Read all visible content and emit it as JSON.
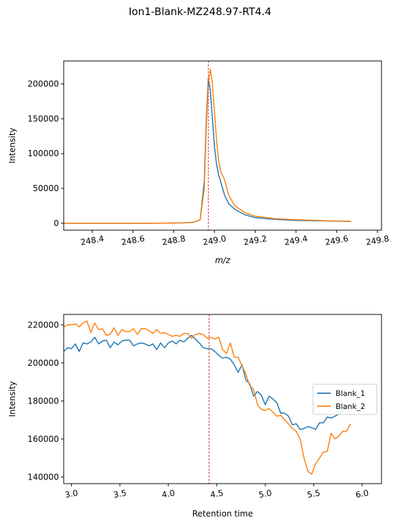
{
  "suptitle": "Ion1-Blank-MZ248.97-RT4.4",
  "chart_data": [
    {
      "type": "line",
      "xlabel": "m/z",
      "ylabel": "Intensity",
      "xlim": [
        248.26,
        249.82
      ],
      "ylim": [
        -10000,
        233000
      ],
      "xticks": [
        248.4,
        248.6,
        248.8,
        249.0,
        249.2,
        249.4,
        249.6,
        249.8
      ],
      "xtick_labels": [
        "248.4",
        "248.6",
        "248.8",
        "249.0",
        "249.2",
        "249.4",
        "249.6",
        "249.8"
      ],
      "yticks": [
        0,
        50000,
        100000,
        150000,
        200000
      ],
      "ytick_labels": [
        "0",
        "50000",
        "100000",
        "150000",
        "200000"
      ],
      "vline": 248.97,
      "series": [
        {
          "color": "#1f77b4",
          "x": [
            248.26,
            248.5,
            248.7,
            248.85,
            248.9,
            248.93,
            248.95,
            248.96,
            248.97,
            248.98,
            248.99,
            249.0,
            249.01,
            249.02,
            249.03,
            249.05,
            249.07,
            249.1,
            249.15,
            249.2,
            249.3,
            249.4,
            249.5,
            249.6,
            249.67
          ],
          "y": [
            0,
            0,
            0,
            500,
            1500,
            5000,
            60000,
            150000,
            208000,
            190000,
            150000,
            110000,
            85000,
            70000,
            60000,
            40000,
            28000,
            20000,
            12000,
            8000,
            5500,
            4000,
            3500,
            3000,
            2500
          ]
        },
        {
          "color": "#ff7f0e",
          "x": [
            248.26,
            248.5,
            248.7,
            248.85,
            248.9,
            248.93,
            248.95,
            248.96,
            248.97,
            248.98,
            248.99,
            249.0,
            249.01,
            249.02,
            249.03,
            249.05,
            249.07,
            249.1,
            249.15,
            249.2,
            249.3,
            249.4,
            249.5,
            249.6,
            249.67
          ],
          "y": [
            0,
            0,
            0,
            500,
            1500,
            5000,
            50000,
            140000,
            202000,
            221000,
            200000,
            160000,
            120000,
            90000,
            75000,
            62000,
            40000,
            25000,
            15000,
            10000,
            6500,
            5000,
            4000,
            3200,
            2800
          ]
        }
      ]
    },
    {
      "type": "line",
      "xlabel": "Retention time",
      "ylabel": "Intensity",
      "xlim": [
        2.92,
        6.2
      ],
      "ylim": [
        136500,
        225500
      ],
      "xticks": [
        3.0,
        3.5,
        4.0,
        4.5,
        5.0,
        5.5,
        6.0
      ],
      "xtick_labels": [
        "3.0",
        "3.5",
        "4.0",
        "4.5",
        "5.0",
        "5.5",
        "6.0"
      ],
      "yticks": [
        140000,
        160000,
        180000,
        200000,
        220000
      ],
      "ytick_labels": [
        "140000",
        "160000",
        "180000",
        "200000",
        "220000"
      ],
      "vline": 4.42,
      "legend_position": "center-right",
      "series": [
        {
          "name": "Blank_1",
          "color": "#1f77b4",
          "x": [
            2.92,
            2.96,
            3.0,
            3.04,
            3.08,
            3.12,
            3.16,
            3.2,
            3.24,
            3.28,
            3.32,
            3.36,
            3.4,
            3.44,
            3.48,
            3.52,
            3.56,
            3.6,
            3.64,
            3.68,
            3.72,
            3.76,
            3.8,
            3.84,
            3.88,
            3.92,
            3.96,
            4.0,
            4.04,
            4.08,
            4.12,
            4.16,
            4.2,
            4.24,
            4.28,
            4.32,
            4.36,
            4.4,
            4.44,
            4.48,
            4.52,
            4.56,
            4.6,
            4.64,
            4.68,
            4.72,
            4.76,
            4.8,
            4.84,
            4.88,
            4.92,
            4.96,
            5.0,
            5.04,
            5.08,
            5.12,
            5.16,
            5.2,
            5.24,
            5.28,
            5.32,
            5.36,
            5.4,
            5.44,
            5.48,
            5.52,
            5.56,
            5.6,
            5.64,
            5.68,
            5.72,
            5.76,
            5.8,
            5.84,
            5.88
          ],
          "y": [
            206000,
            208000,
            207500,
            210000,
            206000,
            210500,
            210000,
            211000,
            213500,
            210000,
            211500,
            212000,
            208000,
            211000,
            209500,
            211500,
            212000,
            212000,
            209000,
            210000,
            210500,
            210000,
            209000,
            210000,
            207000,
            210500,
            208000,
            210500,
            211500,
            210000,
            212000,
            211000,
            213000,
            214500,
            212500,
            210500,
            208000,
            207500,
            207500,
            206000,
            204000,
            202500,
            203000,
            202000,
            199000,
            195000,
            199000,
            191000,
            189000,
            182500,
            185000,
            183000,
            178000,
            182500,
            181000,
            179000,
            173500,
            173500,
            172000,
            167500,
            168000,
            165000,
            165500,
            166500,
            166000,
            165000,
            168500,
            168500,
            171500,
            171000,
            172000,
            173000,
            175000,
            177000,
            178000
          ]
        },
        {
          "name": "Blank_2",
          "color": "#ff7f0e",
          "x": [
            2.92,
            2.96,
            3.0,
            3.04,
            3.08,
            3.12,
            3.16,
            3.2,
            3.24,
            3.28,
            3.32,
            3.36,
            3.4,
            3.44,
            3.48,
            3.52,
            3.56,
            3.6,
            3.64,
            3.68,
            3.72,
            3.76,
            3.8,
            3.84,
            3.88,
            3.92,
            3.96,
            4.0,
            4.04,
            4.08,
            4.12,
            4.16,
            4.2,
            4.24,
            4.28,
            4.32,
            4.36,
            4.4,
            4.44,
            4.48,
            4.52,
            4.56,
            4.6,
            4.64,
            4.68,
            4.72,
            4.76,
            4.8,
            4.84,
            4.88,
            4.92,
            4.96,
            5.0,
            5.04,
            5.08,
            5.12,
            5.16,
            5.2,
            5.24,
            5.28,
            5.32,
            5.36,
            5.4,
            5.44,
            5.48,
            5.52,
            5.56,
            5.6,
            5.64,
            5.68,
            5.72,
            5.76,
            5.8,
            5.84,
            5.88
          ],
          "y": [
            219000,
            220000,
            220000,
            220500,
            219000,
            221000,
            222000,
            216000,
            221000,
            217500,
            218000,
            214500,
            215000,
            218500,
            214500,
            217500,
            216500,
            216500,
            218000,
            215000,
            218000,
            218000,
            217000,
            215500,
            217500,
            215500,
            216000,
            215000,
            214000,
            214500,
            214000,
            215500,
            215500,
            213000,
            215000,
            215500,
            215000,
            213000,
            213500,
            212500,
            213500,
            207000,
            205000,
            210500,
            203000,
            203000,
            198500,
            194000,
            188000,
            186000,
            178000,
            175500,
            175000,
            176000,
            174000,
            172000,
            172500,
            170000,
            168000,
            165500,
            164000,
            160000,
            150000,
            143000,
            141500,
            147000,
            150000,
            153000,
            153500,
            163000,
            160000,
            161500,
            164000,
            164000,
            168000
          ]
        }
      ]
    }
  ]
}
